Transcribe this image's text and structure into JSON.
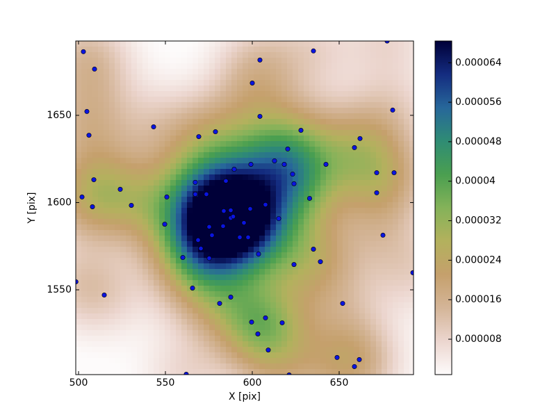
{
  "chart_data": {
    "type": "scatter",
    "x_label": "X [pix]",
    "y_label": "Y [pix]",
    "xlim": [
      498.4,
      692.8
    ],
    "ylim": [
      1501.4,
      1692.6
    ],
    "xticks": [
      500,
      550,
      600,
      650
    ],
    "yticks": [
      1550,
      1600,
      1650
    ],
    "point_color": "#0a14e0",
    "point_edge_color": "#000000",
    "colorbar": {
      "lim": [
        8.3e-07,
        6.84e-05
      ],
      "ticks": [
        8e-06,
        1.6e-05,
        2.4e-05,
        3.2e-05,
        4e-05,
        4.8e-05,
        5.6e-05,
        6.4e-05
      ],
      "colormap": [
        "#fdfbfb",
        "#ecd6cf",
        "#d4b598",
        "#c5a06c",
        "#b3b15d",
        "#84b259",
        "#4a9f50",
        "#2f8c74",
        "#27679a",
        "#142c80",
        "#000038"
      ]
    },
    "x": [
      502.8,
      509.2,
      504.8,
      506.0,
      508.8,
      502.0,
      508.0,
      524.0,
      530.4,
      543.2,
      550.8,
      549.6,
      498.5,
      514.8,
      560.0,
      565.6,
      562.0,
      604.4,
      600.0,
      604.4,
      635.2,
      677.6,
      680.8,
      569.2,
      578.8,
      628.0,
      620.4,
      662.0,
      658.8,
      612.8,
      618.4,
      642.4,
      623.2,
      624.0,
      671.6,
      681.6,
      671.6,
      589.6,
      599.2,
      567.2,
      584.8,
      567.2,
      573.6,
      633.0,
      607.6,
      598.8,
      587.6,
      583.6,
      587.6,
      615.2,
      595.2,
      583.2,
      575.2,
      576.8,
      592.8,
      597.6,
      568.8,
      570.4,
      575.2,
      603.6,
      635.2,
      639.2,
      624.0,
      675.2,
      692.4,
      587.6,
      581.2,
      652.0,
      599.6,
      607.6,
      617.2,
      603.2,
      609.2,
      648.8,
      661.6,
      658.8,
      621.2,
      589.0
    ],
    "y": [
      1686.5,
      1676.5,
      1652.2,
      1638.6,
      1613.1,
      1603.2,
      1597.6,
      1607.6,
      1598.4,
      1643.4,
      1603.2,
      1587.6,
      1554.6,
      1547.0,
      1568.5,
      1551.0,
      1501.6,
      1681.7,
      1668.5,
      1649.4,
      1686.9,
      1692.6,
      1653.0,
      1637.8,
      1640.6,
      1641.4,
      1630.7,
      1636.7,
      1631.5,
      1623.9,
      1621.9,
      1621.9,
      1616.3,
      1610.8,
      1617.1,
      1617.1,
      1605.6,
      1619.1,
      1621.9,
      1611.6,
      1612.4,
      1604.8,
      1604.8,
      1602.4,
      1598.8,
      1596.4,
      1595.6,
      1595.2,
      1591.2,
      1590.8,
      1588.4,
      1586.5,
      1586.1,
      1581.3,
      1580.1,
      1580.1,
      1578.5,
      1573.7,
      1568.1,
      1570.5,
      1573.3,
      1566.1,
      1564.5,
      1581.3,
      1559.8,
      1545.8,
      1542.2,
      1542.2,
      1531.5,
      1533.9,
      1531.1,
      1524.7,
      1515.5,
      1511.2,
      1510.0,
      1506.0,
      1501.2,
      1592.0
    ]
  }
}
